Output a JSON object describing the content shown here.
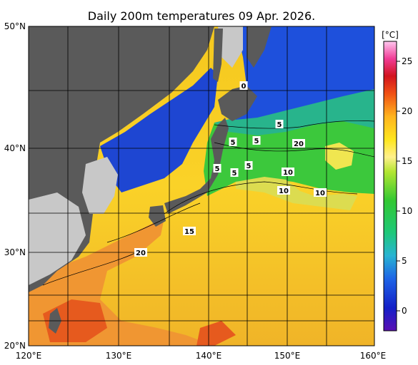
{
  "title": "Daily 200m temperatures 09 Apr. 2026.",
  "lat_labels": [
    "50°N",
    "40°N",
    "30°N",
    "20°N"
  ],
  "lon_labels": [
    "120°E",
    "130°E",
    "140°E",
    "150°E",
    "160°E"
  ],
  "colorbar": {
    "unit": "[°C]",
    "ticks": [
      "25",
      "20",
      "15",
      "10",
      "5",
      "0"
    ],
    "range": [
      -2,
      27
    ]
  },
  "contour_labels": [
    "0",
    "5",
    "5",
    "5",
    "5",
    "5",
    "5",
    "5",
    "10",
    "10",
    "10",
    "15",
    "20",
    "20"
  ],
  "colors": {
    "land": "#5a5a5a",
    "shelf": "#c8c8c8",
    "frame": "#000000"
  }
}
